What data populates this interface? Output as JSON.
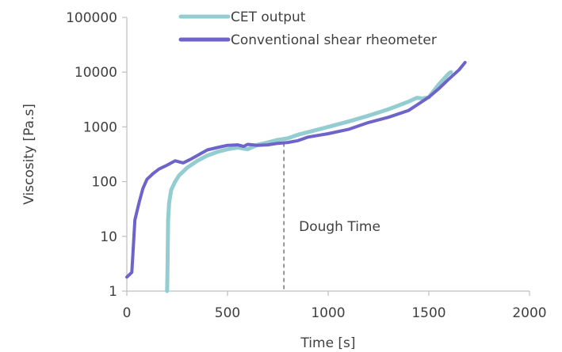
{
  "chart_data": {
    "type": "line",
    "title": "",
    "xlabel": "Time [s]",
    "ylabel": "Viscosity [Pa.s]",
    "xlim": [
      0,
      2000
    ],
    "ylim": [
      1,
      100000
    ],
    "yscale": "log",
    "xticks": [
      0,
      500,
      1000,
      1500,
      2000
    ],
    "yticks": [
      1,
      10,
      100,
      1000,
      10000,
      100000
    ],
    "xtick_labels": [
      "0",
      "500",
      "1000",
      "1500",
      "2000"
    ],
    "ytick_labels": [
      "1",
      "10",
      "100",
      "1000",
      "10000",
      "100000"
    ],
    "grid": false,
    "legend_position": "top",
    "series": [
      {
        "name": "CET output",
        "color": "#93CDD1",
        "x": [
          200,
          202,
          205,
          210,
          220,
          240,
          260,
          300,
          350,
          400,
          450,
          500,
          550,
          600,
          650,
          700,
          750,
          800,
          850,
          900,
          1000,
          1100,
          1200,
          1300,
          1400,
          1440,
          1470,
          1500,
          1550,
          1600,
          1610
        ],
        "y": [
          1,
          2.5,
          20,
          40,
          70,
          100,
          130,
          180,
          240,
          300,
          350,
          390,
          420,
          390,
          470,
          520,
          580,
          620,
          720,
          800,
          1000,
          1250,
          1600,
          2100,
          2900,
          3400,
          3300,
          3500,
          6000,
          9500,
          10000
        ]
      },
      {
        "name": "Conventional shear rheometer",
        "color": "#6E63C9",
        "x": [
          0,
          25,
          40,
          60,
          80,
          100,
          130,
          160,
          200,
          240,
          280,
          320,
          350,
          400,
          450,
          500,
          550,
          580,
          600,
          650,
          700,
          750,
          800,
          850,
          900,
          1000,
          1100,
          1200,
          1300,
          1400,
          1500,
          1550,
          1600,
          1650,
          1680
        ],
        "y": [
          1.8,
          2.2,
          20,
          40,
          75,
          110,
          140,
          170,
          200,
          240,
          220,
          260,
          300,
          380,
          420,
          460,
          470,
          440,
          480,
          460,
          470,
          500,
          520,
          560,
          650,
          750,
          900,
          1200,
          1500,
          2000,
          3500,
          5000,
          7500,
          11000,
          15000
        ]
      }
    ],
    "annotations": [
      {
        "text": "Dough Time",
        "x": 780
      }
    ]
  }
}
